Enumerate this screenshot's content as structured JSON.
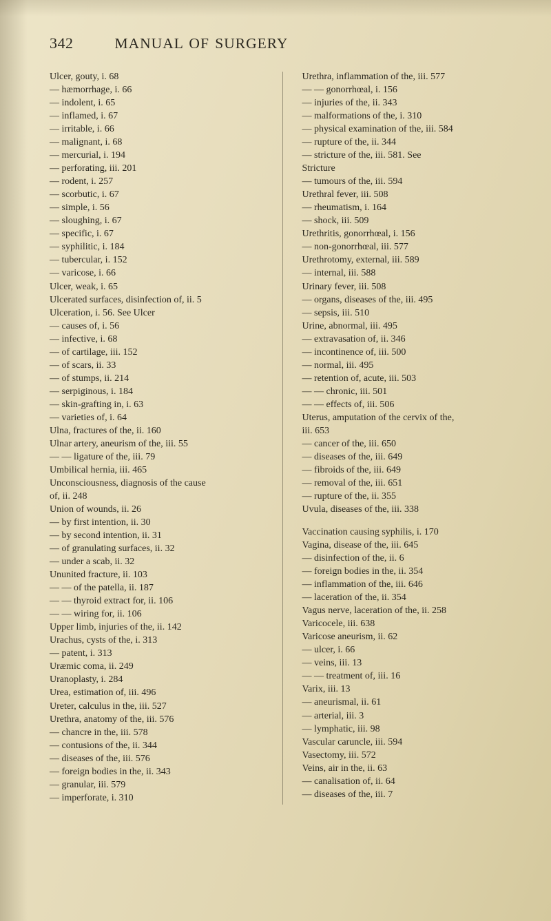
{
  "header": {
    "page_number": "342",
    "title": "MANUAL OF SURGERY"
  },
  "columns": {
    "left": [
      {
        "ind": 0,
        "t": "Ulcer, gouty, i. 68"
      },
      {
        "ind": 1,
        "t": "hæmorrhage, i. 66"
      },
      {
        "ind": 1,
        "t": "indolent, i. 65"
      },
      {
        "ind": 1,
        "t": "inflamed, i. 67"
      },
      {
        "ind": 1,
        "t": "irritable, i. 66"
      },
      {
        "ind": 1,
        "t": "malignant, i. 68"
      },
      {
        "ind": 1,
        "t": "mercurial, i. 194"
      },
      {
        "ind": 1,
        "t": "perforating, iii. 201"
      },
      {
        "ind": 1,
        "t": "rodent, i. 257"
      },
      {
        "ind": 1,
        "t": "scorbutic, i. 67"
      },
      {
        "ind": 1,
        "t": "simple, i. 56"
      },
      {
        "ind": 1,
        "t": "sloughing, i. 67"
      },
      {
        "ind": 1,
        "t": "specific, i. 67"
      },
      {
        "ind": 1,
        "t": "syphilitic, i. 184"
      },
      {
        "ind": 1,
        "t": "tubercular, i. 152"
      },
      {
        "ind": 1,
        "t": "varicose, i. 66"
      },
      {
        "ind": 0,
        "t": "Ulcer, weak, i. 65"
      },
      {
        "ind": 0,
        "t": "Ulcerated surfaces, disinfection of, ii. 5"
      },
      {
        "ind": 0,
        "t": "Ulceration, i. 56.  See Ulcer"
      },
      {
        "ind": 1,
        "t": "causes of, i. 56"
      },
      {
        "ind": 1,
        "t": "infective, i. 68"
      },
      {
        "ind": 1,
        "t": "of cartilage, iii. 152"
      },
      {
        "ind": 1,
        "t": "of scars, ii. 33"
      },
      {
        "ind": 1,
        "t": "of stumps, ii. 214"
      },
      {
        "ind": 1,
        "t": "serpiginous, i. 184"
      },
      {
        "ind": 1,
        "t": "skin-grafting in, i. 63"
      },
      {
        "ind": 1,
        "t": "varieties of, i. 64"
      },
      {
        "ind": 0,
        "t": "Ulna, fractures of the, ii. 160"
      },
      {
        "ind": 0,
        "t": "Ulnar artery, aneurism of the, iii. 55"
      },
      {
        "ind": 2,
        "t": "ligature of the, iii. 79"
      },
      {
        "ind": 0,
        "t": "Umbilical hernia, iii. 465"
      },
      {
        "ind": 0,
        "t": "Unconsciousness, diagnosis of the cause"
      },
      {
        "ind": 3,
        "t": "of, ii. 248"
      },
      {
        "ind": 0,
        "t": "Union of wounds, ii. 26"
      },
      {
        "ind": 1,
        "t": "by first intention, ii. 30"
      },
      {
        "ind": 1,
        "t": "by second intention, ii. 31"
      },
      {
        "ind": 1,
        "t": "of granulating surfaces, ii. 32"
      },
      {
        "ind": 1,
        "t": "under a scab, ii. 32"
      },
      {
        "ind": 0,
        "t": "Ununited fracture, ii. 103"
      },
      {
        "ind": 2,
        "t": "of the patella, ii. 187"
      },
      {
        "ind": 2,
        "t": "thyroid extract for, ii. 106"
      },
      {
        "ind": 2,
        "t": "wiring for, ii. 106"
      },
      {
        "ind": 0,
        "t": "Upper limb, injuries of the, ii. 142"
      },
      {
        "ind": 0,
        "t": "Urachus, cysts of the, i. 313"
      },
      {
        "ind": 1,
        "t": "patent, i. 313"
      },
      {
        "ind": 0,
        "t": "Uræmic coma, ii. 249"
      },
      {
        "ind": 0,
        "t": "Uranoplasty, i. 284"
      },
      {
        "ind": 0,
        "t": "Urea, estimation of, iii. 496"
      },
      {
        "ind": 0,
        "t": "Ureter, calculus in the, iii. 527"
      },
      {
        "ind": 0,
        "t": "Urethra, anatomy of the, iii. 576"
      },
      {
        "ind": 1,
        "t": "chancre in the, iii. 578"
      },
      {
        "ind": 1,
        "t": "contusions of the, ii. 344"
      },
      {
        "ind": 1,
        "t": "diseases of the, iii. 576"
      },
      {
        "ind": 1,
        "t": "foreign bodies in the, ii. 343"
      },
      {
        "ind": 1,
        "t": "granular, iii. 579"
      },
      {
        "ind": 1,
        "t": "imperforate, i. 310"
      }
    ],
    "right": [
      {
        "ind": 0,
        "t": "Urethra, inflammation of the, iii. 577"
      },
      {
        "ind": 2,
        "t": "gonorrhœal, i. 156"
      },
      {
        "ind": 1,
        "t": "injuries of the, ii. 343"
      },
      {
        "ind": 1,
        "t": "malformations of the, i. 310"
      },
      {
        "ind": 1,
        "t": "physical examination of the, iii. 584"
      },
      {
        "ind": 1,
        "t": "rupture of the, ii. 344"
      },
      {
        "ind": 1,
        "t": "stricture of the, iii. 581. See"
      },
      {
        "ind": 3,
        "t": "Stricture"
      },
      {
        "ind": 1,
        "t": "tumours of the, iii. 594"
      },
      {
        "ind": 0,
        "t": "Urethral fever, iii. 508"
      },
      {
        "ind": 1,
        "t": "rheumatism, i. 164"
      },
      {
        "ind": 1,
        "t": "shock, iii. 509"
      },
      {
        "ind": 0,
        "t": "Urethritis, gonorrhœal, i. 156"
      },
      {
        "ind": 1,
        "t": "non-gonorrhœal, iii. 577"
      },
      {
        "ind": 0,
        "t": "Urethrotomy, external, iii. 589"
      },
      {
        "ind": 1,
        "t": "internal, iii. 588"
      },
      {
        "ind": 0,
        "t": "Urinary fever, iii. 508"
      },
      {
        "ind": 1,
        "t": "organs, diseases of the, iii. 495"
      },
      {
        "ind": 1,
        "t": "sepsis, iii. 510"
      },
      {
        "ind": 0,
        "t": "Urine, abnormal, iii. 495"
      },
      {
        "ind": 1,
        "t": "extravasation of, ii. 346"
      },
      {
        "ind": 1,
        "t": "incontinence of, iii. 500"
      },
      {
        "ind": 1,
        "t": "normal, iii. 495"
      },
      {
        "ind": 1,
        "t": "retention of, acute, iii. 503"
      },
      {
        "ind": 2,
        "t": "chronic, iii. 501"
      },
      {
        "ind": 2,
        "t": "effects of, iii. 506"
      },
      {
        "ind": 0,
        "t": "Uterus, amputation of the cervix of the,"
      },
      {
        "ind": 3,
        "t": "iii. 653"
      },
      {
        "ind": 1,
        "t": "cancer of the, iii. 650"
      },
      {
        "ind": 1,
        "t": "diseases of the, iii. 649"
      },
      {
        "ind": 1,
        "t": "fibroids of the, iii. 649"
      },
      {
        "ind": 1,
        "t": "removal of the, iii. 651"
      },
      {
        "ind": 1,
        "t": "rupture of the, ii. 355"
      },
      {
        "ind": 0,
        "t": "Uvula, diseases of the, iii. 338"
      },
      {
        "sp": true
      },
      {
        "ind": 0,
        "t": "Vaccination causing syphilis, i. 170"
      },
      {
        "ind": 0,
        "t": "Vagina, disease of the, iii. 645"
      },
      {
        "ind": 1,
        "t": "disinfection of the, ii. 6"
      },
      {
        "ind": 1,
        "t": "foreign bodies in the, ii. 354"
      },
      {
        "ind": 1,
        "t": "inflammation of the, iii. 646"
      },
      {
        "ind": 1,
        "t": "laceration of the, ii. 354"
      },
      {
        "ind": 0,
        "t": "Vagus nerve, laceration of the, ii. 258"
      },
      {
        "ind": 0,
        "t": "Varicocele, iii. 638"
      },
      {
        "ind": 0,
        "t": "Varicose aneurism, ii. 62"
      },
      {
        "ind": 1,
        "t": "ulcer, i. 66"
      },
      {
        "ind": 1,
        "t": "veins, iii. 13"
      },
      {
        "ind": 2,
        "t": "treatment of, iii. 16"
      },
      {
        "ind": 0,
        "t": "Varix, iii. 13"
      },
      {
        "ind": 1,
        "t": "aneurismal, ii. 61"
      },
      {
        "ind": 1,
        "t": "arterial, iii. 3"
      },
      {
        "ind": 1,
        "t": "lymphatic, iii. 98"
      },
      {
        "ind": 0,
        "t": "Vascular caruncle, iii. 594"
      },
      {
        "ind": 0,
        "t": "Vasectomy, iii. 572"
      },
      {
        "ind": 0,
        "t": "Veins, air in the, ii. 63"
      },
      {
        "ind": 1,
        "t": "canalisation of, ii. 64"
      },
      {
        "ind": 1,
        "t": "diseases of the, iii. 7"
      }
    ]
  }
}
